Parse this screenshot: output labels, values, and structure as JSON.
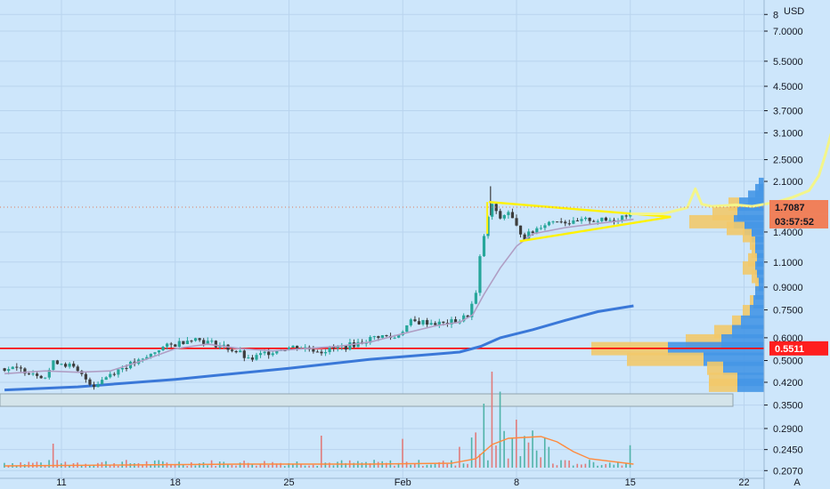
{
  "chart_data": {
    "type": "candlestick",
    "y_scale": "log",
    "currency": "USD",
    "grid": true,
    "y_ticks": [
      "8",
      "7.0000",
      "5.5000",
      "4.5000",
      "3.7000",
      "3.1000",
      "2.5000",
      "2.1000",
      "1.4000",
      "1.1000",
      "0.9000",
      "0.7500",
      "0.6000",
      "0.5000",
      "0.4200",
      "0.3500",
      "0.2900",
      "0.2450",
      "0.2070"
    ],
    "x_ticks": [
      "11",
      "18",
      "25",
      "Feb",
      "8",
      "15",
      "22"
    ],
    "corner_label": "A",
    "last_price": "1.7087",
    "countdown": "03:57:52",
    "support_level": "0.5511",
    "colors": {
      "background": "#cde6fb",
      "candle_up": "#26a69a",
      "candle_down": "#3d3d3d",
      "ma_long": "#3a78d8",
      "ma_short": "#b09ec4",
      "support": "#ff0000",
      "triangle": "#fff200",
      "projection": "#f3f58a",
      "volume_ma": "#ff8a3d",
      "badge": "#f0805a",
      "profile_up": "#4596e6",
      "profile_down": "#f2c96a"
    }
  }
}
